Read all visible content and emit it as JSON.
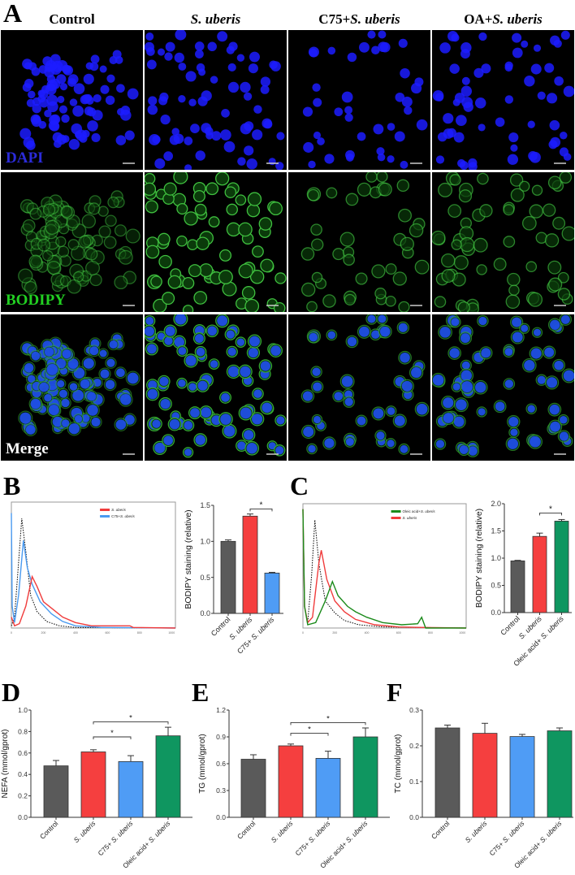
{
  "panel_letters": {
    "a": "A",
    "b": "B",
    "c": "C",
    "d": "D",
    "e": "E",
    "f": "F"
  },
  "microscopy": {
    "columns": [
      {
        "label_plain": "Control",
        "label_italic": ""
      },
      {
        "label_plain": "",
        "label_italic": "S. uberis"
      },
      {
        "label_plain": "C75+",
        "label_italic": "S. uberis"
      },
      {
        "label_plain": "OA+",
        "label_italic": "S. uberis"
      }
    ],
    "rows": [
      {
        "label": "DAPI",
        "color": "#2b2bd9"
      },
      {
        "label": "BODIPY",
        "color": "#22d022"
      },
      {
        "label": "Merge",
        "color": "#ffffff"
      }
    ]
  },
  "chart_data": [
    {
      "id": "B-hist",
      "type": "line",
      "xlim": [
        0,
        1024
      ],
      "ylim": [
        0,
        1.15
      ],
      "xticks": [
        "0",
        "200",
        "400",
        "600",
        "800",
        "1000"
      ],
      "legend_position": "top-right",
      "series": [
        {
          "name": "",
          "style": "dotted",
          "color": "#000000",
          "x": [
            0,
            20,
            40,
            65,
            90,
            120,
            160,
            220,
            300,
            400,
            1024
          ],
          "y": [
            0.02,
            0.1,
            0.5,
            1.0,
            0.7,
            0.3,
            0.15,
            0.06,
            0.02,
            0.005,
            0
          ]
        },
        {
          "name": "C75+S. uberis",
          "color": "#4a9af0",
          "x": [
            0,
            5,
            20,
            45,
            75,
            100,
            130,
            180,
            250,
            320,
            400,
            560,
            1024
          ],
          "y": [
            1.05,
            0.2,
            0.05,
            0.3,
            0.8,
            0.55,
            0.4,
            0.24,
            0.13,
            0.06,
            0.02,
            0.005,
            0
          ]
        },
        {
          "name": "S. uberis",
          "color": "#f03c3c",
          "x": [
            0,
            20,
            50,
            90,
            130,
            160,
            200,
            260,
            320,
            400,
            500,
            740,
            760,
            1024
          ],
          "y": [
            0.1,
            0.02,
            0.04,
            0.2,
            0.47,
            0.38,
            0.24,
            0.17,
            0.1,
            0.05,
            0.02,
            0.02,
            0.005,
            0
          ]
        }
      ]
    },
    {
      "id": "B-bar",
      "type": "bar",
      "ylabel": "BODIPY staining (relative)",
      "ylim": [
        0,
        1.5
      ],
      "yticks": [
        "0.0",
        "0.5",
        "1.0",
        "1.5"
      ],
      "categories": [
        "Control",
        "S. uberis",
        "C75+ S. uberis"
      ],
      "values": [
        1.0,
        1.35,
        0.56
      ],
      "errors": [
        0.02,
        0.03,
        0.01
      ],
      "colors": [
        "#5a5a5a",
        "#f53f3f",
        "#4f9cf5"
      ],
      "significance": [
        {
          "from": 1,
          "to": 2,
          "y": 1.45,
          "label": "*"
        }
      ]
    },
    {
      "id": "C-hist",
      "type": "line",
      "xlim": [
        0,
        1024
      ],
      "ylim": [
        0,
        1.15
      ],
      "xticks": [
        "0",
        "200",
        "400",
        "600",
        "800",
        "1000"
      ],
      "legend_position": "top-right",
      "series": [
        {
          "name": "",
          "style": "dotted",
          "color": "#000000",
          "x": [
            0,
            10,
            30,
            55,
            75,
            100,
            140,
            200,
            260,
            350,
            500,
            1024
          ],
          "y": [
            1.1,
            0.2,
            0.05,
            0.5,
            1.0,
            0.6,
            0.25,
            0.14,
            0.07,
            0.03,
            0.01,
            0
          ]
        },
        {
          "name": "S. uberis",
          "color": "#f03c3c",
          "x": [
            0,
            10,
            30,
            60,
            100,
            115,
            150,
            200,
            260,
            330,
            450,
            600,
            760,
            1024
          ],
          "y": [
            1.1,
            0.2,
            0.05,
            0.1,
            0.6,
            0.72,
            0.45,
            0.25,
            0.15,
            0.08,
            0.03,
            0.01,
            0.005,
            0
          ]
        },
        {
          "name": "Oleic acid+S. uberis",
          "color": "#1a8a1a",
          "x": [
            0,
            10,
            30,
            80,
            140,
            185,
            220,
            280,
            330,
            400,
            500,
            620,
            720,
            745,
            770,
            1024
          ],
          "y": [
            1.1,
            0.2,
            0.03,
            0.05,
            0.25,
            0.43,
            0.3,
            0.2,
            0.15,
            0.1,
            0.05,
            0.03,
            0.04,
            0.1,
            0,
            0
          ]
        }
      ]
    },
    {
      "id": "C-bar",
      "type": "bar",
      "ylabel": "BODIPY staining (relative)",
      "ylim": [
        0,
        2.0
      ],
      "yticks": [
        "0.0",
        "0.5",
        "1.0",
        "1.5",
        "2.0"
      ],
      "categories": [
        "Control",
        "S. uberis",
        "Oleic acid+ S. uberis"
      ],
      "values": [
        0.95,
        1.4,
        1.68
      ],
      "errors": [
        0.01,
        0.06,
        0.03
      ],
      "colors": [
        "#5a5a5a",
        "#f53f3f",
        "#0f9660"
      ],
      "significance": [
        {
          "from": 1,
          "to": 2,
          "y": 1.83,
          "label": "*"
        }
      ]
    },
    {
      "id": "D",
      "type": "bar",
      "ylabel": "NEFA (mmol/gprot)",
      "ylim": [
        0,
        1.0
      ],
      "yticks": [
        "0.0",
        "0.2",
        "0.4",
        "0.6",
        "0.8",
        "1.0"
      ],
      "categories": [
        "Control",
        "S. uberis",
        "C75+ S. uberis",
        "Oleic acid+ S. uberis"
      ],
      "values": [
        0.48,
        0.61,
        0.52,
        0.76
      ],
      "errors": [
        0.05,
        0.02,
        0.055,
        0.08
      ],
      "colors": [
        "#5a5a5a",
        "#f53f3f",
        "#4f9cf5",
        "#0f9660"
      ],
      "significance": [
        {
          "from": 1,
          "to": 2,
          "y": 0.75,
          "label": "*"
        },
        {
          "from": 1,
          "to": 3,
          "y": 0.89,
          "label": "*"
        }
      ]
    },
    {
      "id": "E",
      "type": "bar",
      "ylabel": "TG (mmol/gprot)",
      "ylim": [
        0,
        1.2
      ],
      "yticks": [
        "0.0",
        "0.3",
        "0.6",
        "0.9",
        "1.2"
      ],
      "categories": [
        "Control",
        "S. uberis",
        "C75+ S. uberis",
        "Oleic acid+ S. uberis"
      ],
      "values": [
        0.65,
        0.8,
        0.66,
        0.9
      ],
      "errors": [
        0.05,
        0.02,
        0.08,
        0.1
      ],
      "colors": [
        "#5a5a5a",
        "#f53f3f",
        "#4f9cf5",
        "#0f9660"
      ],
      "significance": [
        {
          "from": 1,
          "to": 2,
          "y": 0.94,
          "label": "*"
        },
        {
          "from": 1,
          "to": 3,
          "y": 1.06,
          "label": "*"
        }
      ]
    },
    {
      "id": "F",
      "type": "bar",
      "ylabel": "TC (mmol/gprot)",
      "ylim": [
        0,
        0.3
      ],
      "yticks": [
        "0.0",
        "0.1",
        "0.2",
        "0.3"
      ],
      "categories": [
        "Control",
        "S. uberis",
        "C75+ S. uberis",
        "Oleic acid+ S. uberis"
      ],
      "values": [
        0.25,
        0.235,
        0.226,
        0.242
      ],
      "errors": [
        0.008,
        0.028,
        0.006,
        0.008
      ],
      "colors": [
        "#5a5a5a",
        "#f53f3f",
        "#4f9cf5",
        "#0f9660"
      ],
      "significance": []
    }
  ]
}
